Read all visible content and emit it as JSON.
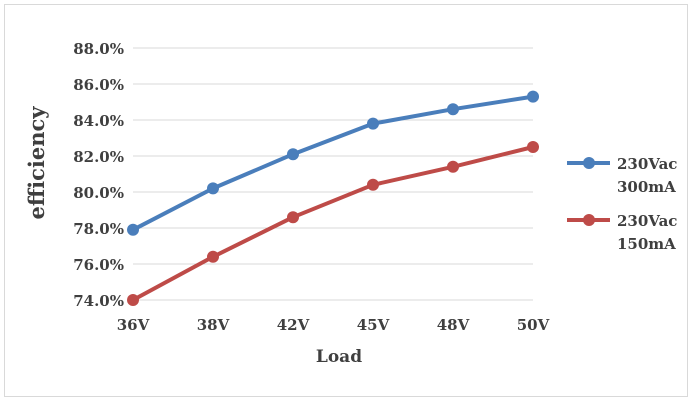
{
  "chart_data": {
    "type": "line",
    "categories": [
      "36V",
      "38V",
      "42V",
      "45V",
      "48V",
      "50V"
    ],
    "series": [
      {
        "name_line1": "230Vac",
        "name_line2": "300mA",
        "color": "#4a7ebb",
        "values": [
          77.9,
          80.2,
          82.1,
          83.8,
          84.6,
          85.3
        ]
      },
      {
        "name_line1": "230Vac",
        "name_line2": "150mA",
        "color": "#be4b48",
        "values": [
          74.0,
          76.4,
          78.6,
          80.4,
          81.4,
          82.5
        ]
      }
    ],
    "xlabel": "Load",
    "ylabel": "efficiency",
    "ylim": [
      74,
      88
    ],
    "yticks": [
      "74.0%",
      "76.0%",
      "78.0%",
      "80.0%",
      "82.0%",
      "84.0%",
      "86.0%",
      "88.0%"
    ],
    "grid": true,
    "legend_position": "right",
    "gridline_color": "#d9d9d9",
    "axis_color": "#d9d9d9"
  }
}
